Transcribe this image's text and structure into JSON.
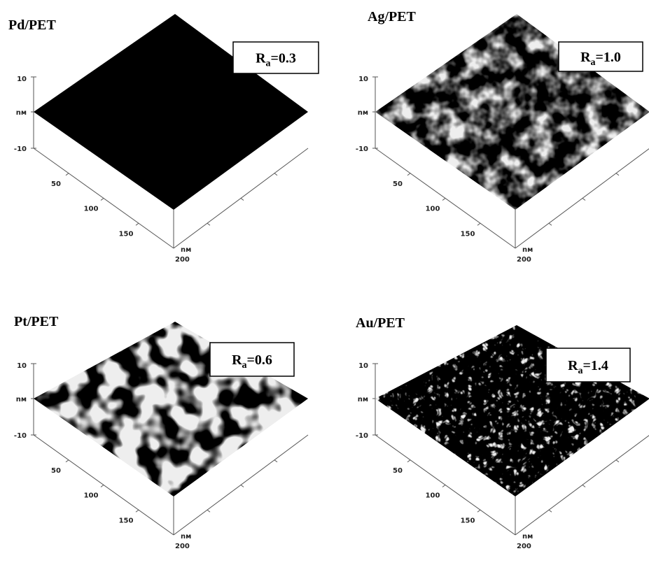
{
  "panels": [
    {
      "title": "Pd/PET",
      "ra": {
        "symbol": "R",
        "subscript": "a",
        "value": "=0.3"
      },
      "z_ticks": [
        "10",
        "nм",
        "-10"
      ],
      "xy_ticks": [
        "50",
        "100",
        "150"
      ],
      "corner_unit": "nм",
      "corner_value": "200"
    },
    {
      "title": "Ag/PET",
      "ra": {
        "symbol": "R",
        "subscript": "a",
        "value": "=1.0"
      },
      "z_ticks": [
        "10",
        "nм",
        "-10"
      ],
      "xy_ticks": [
        "50",
        "100",
        "150"
      ],
      "corner_unit": "nм",
      "corner_value": "200"
    },
    {
      "title": "Pt/PET",
      "ra": {
        "symbol": "R",
        "subscript": "a",
        "value": "=0.6"
      },
      "z_ticks": [
        "10",
        "nм",
        "-10"
      ],
      "xy_ticks": [
        "50",
        "100",
        "150"
      ],
      "corner_unit": "nм",
      "corner_value": "200"
    },
    {
      "title": "Au/PET",
      "ra": {
        "symbol": "R",
        "subscript": "a",
        "value": "=1.4"
      },
      "z_ticks": [
        "10",
        "nм",
        "-10"
      ],
      "xy_ticks": [
        "50",
        "100",
        "150"
      ],
      "corner_unit": "nм",
      "corner_value": "200"
    }
  ]
}
